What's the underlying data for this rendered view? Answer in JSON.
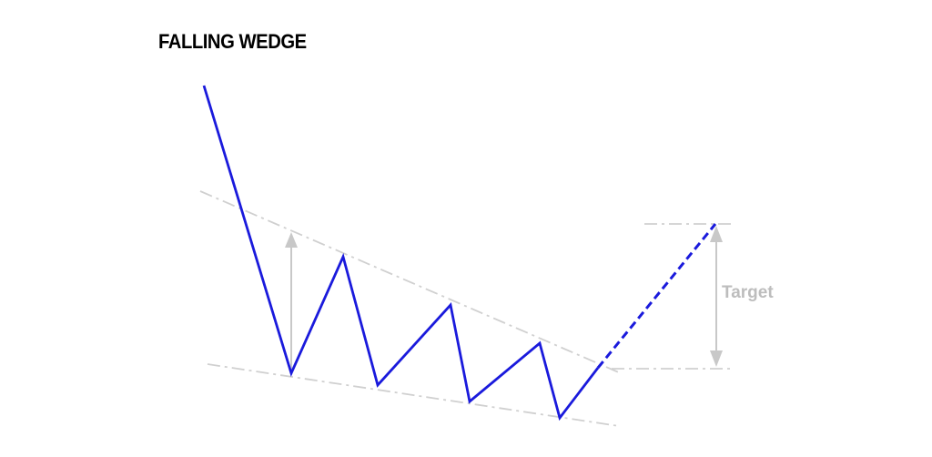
{
  "title": "FALLING WEDGE",
  "target_label": "Target",
  "colors": {
    "price_line": "#1a1adc",
    "guide_lines": "#cccccc",
    "arrows": "#c8c8c8",
    "target_text": "#bdbdbd",
    "title_text": "#000000"
  }
}
